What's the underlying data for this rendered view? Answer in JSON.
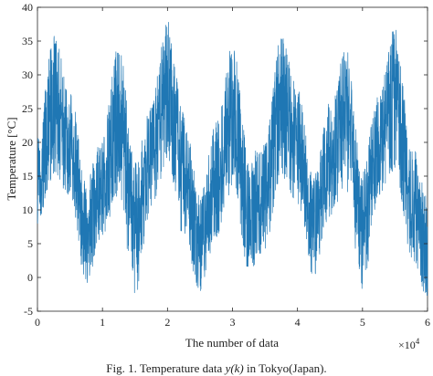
{
  "chart_data": {
    "type": "line",
    "xlabel": "The number of data",
    "x_multiplier_label": "×10",
    "x_multiplier_exponent": "4",
    "ylabel": "Temperature [°C]",
    "xlim": [
      0,
      60000
    ],
    "ylim": [
      -5,
      40
    ],
    "x_ticks": [
      "0",
      "1",
      "2",
      "3",
      "4",
      "5",
      "6"
    ],
    "y_ticks": [
      "-5",
      "0",
      "5",
      "10",
      "15",
      "20",
      "25",
      "30",
      "35",
      "40"
    ],
    "grid": false,
    "line_color": "#1f77b4",
    "series": [
      {
        "x": [
          0,
          2500,
          5000,
          7500,
          10000,
          12500,
          15000,
          17500,
          20000,
          22500,
          25000,
          27500,
          30000,
          32500,
          35000,
          37500,
          40000,
          42500,
          45000,
          47500,
          50000,
          52500,
          55000,
          57500,
          60000
        ],
        "center": [
          15,
          26,
          20,
          7,
          13,
          24,
          8,
          18,
          28,
          15,
          5,
          14,
          24,
          10,
          12,
          26,
          20,
          8,
          17,
          25,
          7,
          20,
          28,
          12,
          4
        ],
        "upper": [
          21,
          36,
          28,
          15,
          21,
          35,
          17,
          26,
          38,
          25,
          12,
          23,
          35,
          18,
          20,
          36,
          28,
          15,
          26,
          34,
          16,
          28,
          37,
          20,
          12
        ],
        "lower": [
          8,
          15,
          12,
          -1,
          6,
          12,
          -3,
          10,
          17,
          6,
          -2,
          6,
          13,
          1,
          4,
          15,
          11,
          0,
          9,
          13,
          -2,
          12,
          16,
          3,
          -3
        ]
      }
    ]
  },
  "caption": {
    "prefix": "Fig. 1.   Temperature data ",
    "math": "y(k)",
    "suffix": " in Tokyo(Japan)."
  }
}
